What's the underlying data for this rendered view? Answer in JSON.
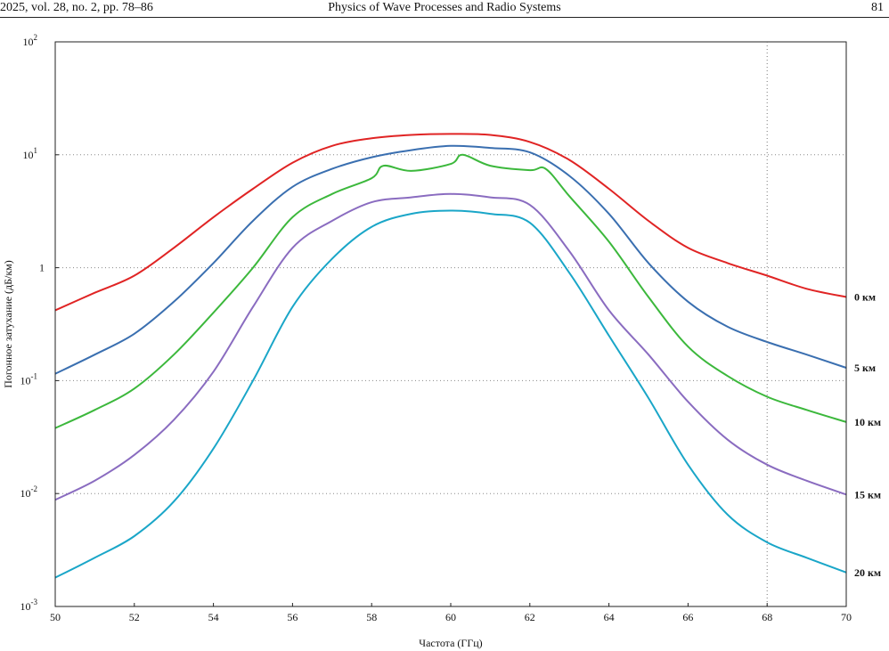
{
  "header": {
    "left": "2025, vol. 28, no. 2, pp. 78–86",
    "center": "Physics of Wave Processes and Radio Systems",
    "right": "81"
  },
  "chart_data": {
    "type": "line",
    "xlabel": "Частота (ГГц)",
    "ylabel": "Погонное затухание (дБ/км)",
    "xlim": [
      50,
      70
    ],
    "ylim": [
      0.001,
      100
    ],
    "yscale": "log",
    "x_ticks": [
      "50",
      "52",
      "54",
      "56",
      "58",
      "60",
      "62",
      "64",
      "66",
      "68",
      "70"
    ],
    "y_ticks": [
      {
        "base": "10",
        "exp": "2"
      },
      {
        "base": "10",
        "exp": "1"
      },
      {
        "base": "1",
        "exp": ""
      },
      {
        "base": "10",
        "exp": "-1"
      },
      {
        "base": "10",
        "exp": "-2"
      },
      {
        "base": "10",
        "exp": "-3"
      }
    ],
    "vline_x": 68,
    "series": [
      {
        "name": "0 км",
        "color": "#e02424",
        "x": [
          50,
          51,
          52,
          53,
          54,
          55,
          56,
          57,
          58,
          59,
          60,
          61,
          62,
          63,
          64,
          65,
          66,
          67,
          68,
          69,
          70
        ],
        "y": [
          0.42,
          0.6,
          0.85,
          1.5,
          2.8,
          5.0,
          8.5,
          12,
          14,
          15,
          15.3,
          15,
          13,
          9,
          5,
          2.6,
          1.5,
          1.1,
          0.85,
          0.65,
          0.55
        ]
      },
      {
        "name": "5 км",
        "color": "#3a6fb0",
        "x": [
          50,
          51,
          52,
          53,
          54,
          55,
          56,
          57,
          58,
          59,
          60,
          61,
          62,
          63,
          64,
          65,
          66,
          67,
          68,
          69,
          70
        ],
        "y": [
          0.115,
          0.17,
          0.26,
          0.5,
          1.1,
          2.6,
          5.2,
          7.5,
          9.5,
          11,
          12,
          11.5,
          10.5,
          6.5,
          3,
          1.1,
          0.5,
          0.3,
          0.22,
          0.17,
          0.13
        ]
      },
      {
        "name": "10 км",
        "color": "#3cb83c",
        "x": [
          50,
          51,
          52,
          53,
          54,
          55,
          56,
          57,
          58,
          58.3,
          59,
          60,
          60.3,
          61,
          62,
          62.4,
          63,
          64,
          65,
          66,
          67,
          68,
          69,
          70
        ],
        "y": [
          0.038,
          0.055,
          0.085,
          0.17,
          0.4,
          1.0,
          2.8,
          4.5,
          6.2,
          8.0,
          7.2,
          8.3,
          10,
          8,
          7.3,
          7.5,
          4.3,
          1.7,
          0.55,
          0.2,
          0.11,
          0.072,
          0.055,
          0.043
        ]
      },
      {
        "name": "15 км",
        "color": "#8a6cc0",
        "x": [
          50,
          51,
          52,
          53,
          54,
          55,
          56,
          57,
          58,
          59,
          60,
          61,
          62,
          63,
          64,
          65,
          66,
          67,
          68,
          69,
          70
        ],
        "y": [
          0.0088,
          0.013,
          0.022,
          0.045,
          0.12,
          0.45,
          1.5,
          2.6,
          3.8,
          4.2,
          4.5,
          4.2,
          3.6,
          1.4,
          0.42,
          0.17,
          0.065,
          0.03,
          0.018,
          0.013,
          0.0098
        ]
      },
      {
        "name": "20 км",
        "color": "#1aa6c8",
        "x": [
          50,
          51,
          52,
          53,
          54,
          55,
          56,
          57,
          58,
          59,
          60,
          61,
          62,
          63,
          64,
          65,
          66,
          67,
          68,
          69,
          70
        ],
        "y": [
          0.0018,
          0.0027,
          0.0042,
          0.0085,
          0.025,
          0.1,
          0.45,
          1.2,
          2.3,
          3.0,
          3.2,
          3.0,
          2.5,
          0.9,
          0.25,
          0.07,
          0.018,
          0.0065,
          0.0037,
          0.0027,
          0.002
        ]
      }
    ]
  }
}
